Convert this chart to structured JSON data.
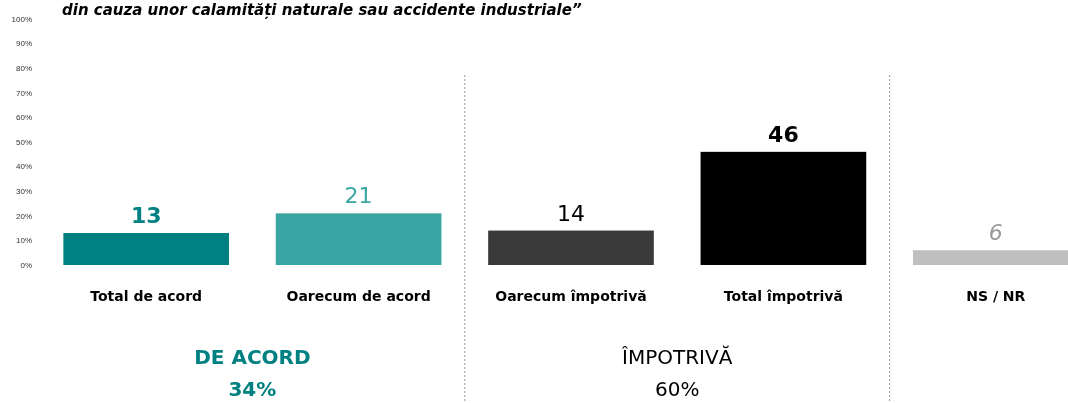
{
  "chart_data": {
    "type": "bar",
    "title": "din cauza unor calamități naturale sau accidente industriale”",
    "categories": [
      "Total de acord",
      "Oarecum de acord",
      "Oarecum împotrivă",
      "Total împotrivă",
      "NS / NR"
    ],
    "values": [
      13,
      21,
      14,
      46,
      6
    ],
    "colors": [
      "#008080",
      "#3aa6a3",
      "#3a3a3a",
      "#000000",
      "#bfbfbf"
    ],
    "ylim": [
      0,
      100
    ],
    "yticks": [
      {
        "value": 0,
        "label": "0%"
      },
      {
        "value": 10,
        "label": "10%"
      },
      {
        "value": 20,
        "label": "20%"
      },
      {
        "value": 30,
        "label": "30%"
      },
      {
        "value": 40,
        "label": "40%"
      },
      {
        "value": 50,
        "label": "50%"
      },
      {
        "value": 60,
        "label": "60%"
      },
      {
        "value": 70,
        "label": "70%"
      },
      {
        "value": 80,
        "label": "80%"
      },
      {
        "value": 90,
        "label": "90%"
      },
      {
        "value": 100,
        "label": "100%"
      }
    ],
    "data_labels": true,
    "annotations": [
      "DE ACORD",
      "34%",
      "ÎMPOTRIVĂ",
      "60%"
    ]
  }
}
